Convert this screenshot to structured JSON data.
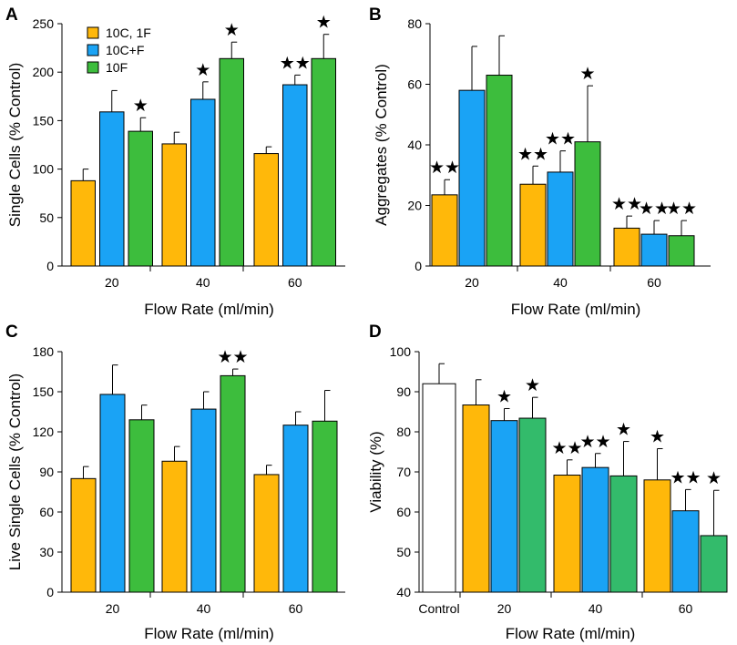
{
  "colors": {
    "series": [
      "#FFB80A",
      "#1AA3F5",
      "#3DBD3D"
    ],
    "series_d": [
      "#FFFFFF",
      "#FFB80A",
      "#1AA3F5",
      "#33BB6B"
    ],
    "axis": "#000000",
    "star": "#000000"
  },
  "chart_data": [
    {
      "panel": "A",
      "type": "bar",
      "ylabel": "Single Cells (% Control)",
      "xlabel": "Flow Rate (ml/min)",
      "ylim": [
        0,
        250
      ],
      "yticks": [
        0,
        50,
        100,
        150,
        200,
        250
      ],
      "categories": [
        "20",
        "40",
        "60"
      ],
      "legend": {
        "placement": "top-left",
        "entries": [
          "10C, 1F",
          "10C+F",
          "10F"
        ]
      },
      "series": [
        {
          "name": "10C, 1F",
          "values": [
            88,
            126,
            116
          ],
          "errors": [
            12,
            12,
            7
          ],
          "stars": [
            "",
            "",
            ""
          ]
        },
        {
          "name": "10C+F",
          "values": [
            159,
            172,
            187
          ],
          "errors": [
            22,
            18,
            10
          ],
          "stars": [
            "",
            "★",
            "★★"
          ]
        },
        {
          "name": "10F",
          "values": [
            139,
            214,
            214
          ],
          "errors": [
            14,
            17,
            25
          ],
          "stars": [
            "★",
            "★",
            "★"
          ]
        }
      ]
    },
    {
      "panel": "B",
      "type": "bar",
      "ylabel": "Aggregates (% Control)",
      "xlabel": "Flow Rate (ml/min)",
      "ylim": [
        0,
        80
      ],
      "yticks": [
        0,
        20,
        40,
        60,
        80
      ],
      "categories": [
        "20",
        "40",
        "60"
      ],
      "series": [
        {
          "name": "10C, 1F",
          "values": [
            23.5,
            27,
            12.5
          ],
          "errors": [
            5,
            6,
            4
          ],
          "stars": [
            "★★",
            "★★",
            "★★"
          ]
        },
        {
          "name": "10C+F",
          "values": [
            58,
            31,
            10.5
          ],
          "errors": [
            14.5,
            7,
            4.5
          ],
          "stars": [
            "",
            "★★",
            "★★"
          ]
        },
        {
          "name": "10F",
          "values": [
            63,
            41,
            10
          ],
          "errors": [
            13,
            18.5,
            5
          ],
          "stars": [
            "",
            "★",
            "★★"
          ]
        }
      ]
    },
    {
      "panel": "C",
      "type": "bar",
      "ylabel": "Live Single Cells (% Control)",
      "xlabel": "Flow Rate (ml/min)",
      "ylim": [
        0,
        180
      ],
      "yticks": [
        0,
        30,
        60,
        90,
        120,
        150,
        180
      ],
      "categories": [
        "20",
        "40",
        "60"
      ],
      "series": [
        {
          "name": "10C, 1F",
          "values": [
            85,
            98,
            88
          ],
          "errors": [
            9,
            11,
            7
          ],
          "stars": [
            "",
            "",
            ""
          ]
        },
        {
          "name": "10C+F",
          "values": [
            148,
            137,
            125
          ],
          "errors": [
            22,
            13,
            10
          ],
          "stars": [
            "",
            "",
            ""
          ]
        },
        {
          "name": "10F",
          "values": [
            129,
            162,
            128
          ],
          "errors": [
            11,
            5,
            23
          ],
          "stars": [
            "",
            "★★",
            ""
          ]
        }
      ]
    },
    {
      "panel": "D",
      "type": "bar",
      "ylabel": "Viability (%)",
      "xlabel": "Flow Rate (ml/min)",
      "ylim": [
        40,
        100
      ],
      "yticks": [
        40,
        50,
        60,
        70,
        80,
        90,
        100
      ],
      "control": {
        "label": "Control",
        "value": 92,
        "error": 5
      },
      "categories": [
        "20",
        "40",
        "60"
      ],
      "series": [
        {
          "name": "10C, 1F",
          "values": [
            86.7,
            69.2,
            68
          ],
          "errors": [
            6.3,
            3.8,
            7.8
          ],
          "stars": [
            "",
            "★★",
            "★"
          ]
        },
        {
          "name": "10C+F",
          "values": [
            82.8,
            71.1,
            60.3
          ],
          "errors": [
            3,
            3.5,
            5.3
          ],
          "stars": [
            "★",
            "★★",
            "★★"
          ]
        },
        {
          "name": "10F",
          "values": [
            83.4,
            69,
            54.1
          ],
          "errors": [
            5.2,
            8.6,
            11.3
          ],
          "stars": [
            "★",
            "★",
            "★"
          ]
        }
      ]
    }
  ]
}
